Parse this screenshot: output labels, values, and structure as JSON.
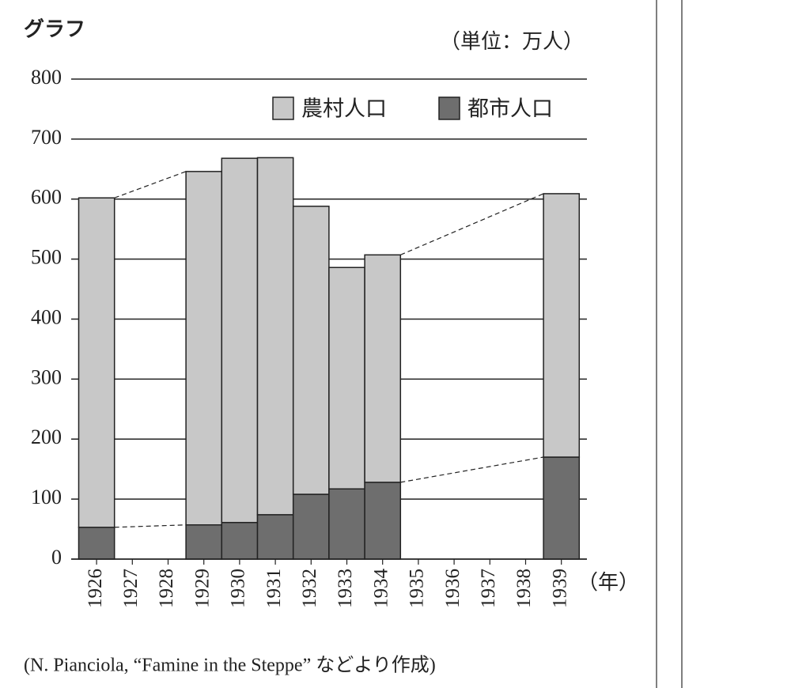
{
  "chart_data": {
    "type": "stacked-bar",
    "title": "グラフ",
    "unit_label": "（単位：万人）",
    "x_label": "（年）",
    "source": "(N. Pianciola, “Famine in the Steppe” などより作成)",
    "categories": [
      "1926",
      "1927",
      "1928",
      "1929",
      "1930",
      "1931",
      "1932",
      "1933",
      "1934",
      "1935",
      "1936",
      "1937",
      "1938",
      "1939"
    ],
    "series": [
      {
        "name": "都市人口",
        "color": "#6e6e6e",
        "values": [
          53,
          null,
          null,
          57,
          61,
          74,
          108,
          117,
          128,
          null,
          null,
          null,
          null,
          170
        ]
      },
      {
        "name": "農村人口",
        "color": "#c8c8c8",
        "values": [
          549,
          null,
          null,
          589,
          607,
          595,
          480,
          369,
          379,
          null,
          null,
          null,
          null,
          439
        ]
      }
    ],
    "legend_order": [
      1,
      0
    ],
    "ylim": [
      0,
      800
    ],
    "yticks": [
      0,
      100,
      200,
      300,
      400,
      500,
      600,
      700,
      800
    ],
    "grid": true
  }
}
